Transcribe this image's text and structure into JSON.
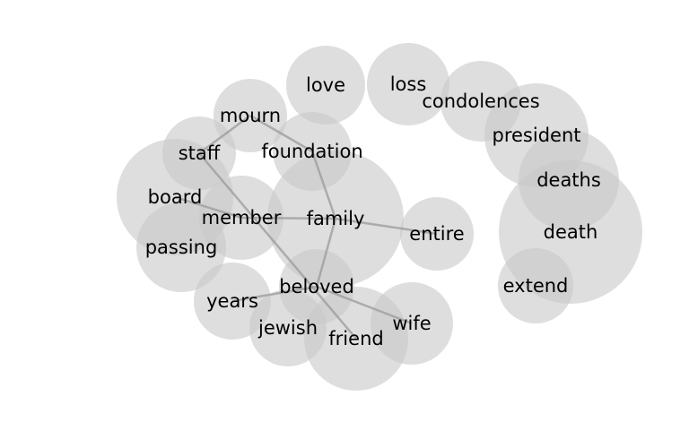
{
  "nodes": [
    {
      "id": "love",
      "label": "love"
    },
    {
      "id": "loss",
      "label": "loss"
    },
    {
      "id": "condolences",
      "label": "condolences"
    },
    {
      "id": "mourn",
      "label": "mourn"
    },
    {
      "id": "president",
      "label": "president"
    },
    {
      "id": "staff",
      "label": "staff"
    },
    {
      "id": "foundation",
      "label": "foundation"
    },
    {
      "id": "deaths",
      "label": "deaths"
    },
    {
      "id": "board",
      "label": "board"
    },
    {
      "id": "member",
      "label": "member"
    },
    {
      "id": "family",
      "label": "family"
    },
    {
      "id": "death",
      "label": "death"
    },
    {
      "id": "entire",
      "label": "entire"
    },
    {
      "id": "passing",
      "label": "passing"
    },
    {
      "id": "extend",
      "label": "extend"
    },
    {
      "id": "beloved",
      "label": "beloved"
    },
    {
      "id": "years",
      "label": "years"
    },
    {
      "id": "wife",
      "label": "wife"
    },
    {
      "id": "jewish",
      "label": "jewish"
    },
    {
      "id": "friend",
      "label": "friend"
    }
  ],
  "edges": [
    [
      "mourn",
      "staff"
    ],
    [
      "mourn",
      "foundation"
    ],
    [
      "staff",
      "friend"
    ],
    [
      "board",
      "member"
    ],
    [
      "member",
      "family"
    ],
    [
      "foundation",
      "family"
    ],
    [
      "family",
      "entire"
    ],
    [
      "family",
      "beloved"
    ],
    [
      "beloved",
      "years"
    ],
    [
      "beloved",
      "wife"
    ]
  ]
}
